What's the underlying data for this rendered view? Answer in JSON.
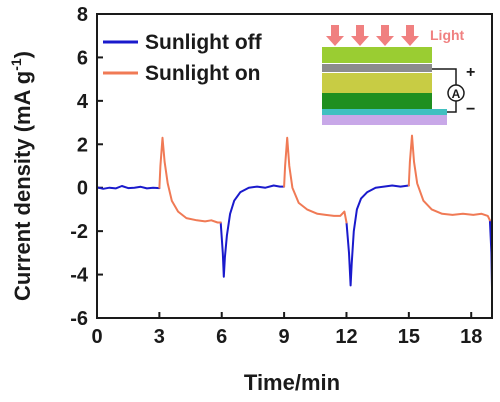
{
  "chart_data": {
    "type": "line",
    "title": "",
    "xlabel": "Time/min",
    "ylabel": "Current density (mA g",
    "ylabel_sup": "-1",
    "ylabel_close": ")",
    "xlim": [
      0,
      19
    ],
    "ylim": [
      -6,
      8
    ],
    "xticks": [
      0,
      3,
      6,
      9,
      12,
      15,
      18
    ],
    "yticks": [
      -6,
      -4,
      -2,
      0,
      2,
      4,
      6,
      8
    ],
    "legend_position": "top-left",
    "series": [
      {
        "name": "Sunlight off",
        "color": "#1a1acc",
        "segments": [
          [
            [
              0,
              0.02
            ],
            [
              0.3,
              -0.05
            ],
            [
              0.6,
              0.0
            ],
            [
              0.9,
              -0.03
            ],
            [
              1.2,
              0.08
            ],
            [
              1.5,
              -0.02
            ],
            [
              1.8,
              0.0
            ],
            [
              2.1,
              0.04
            ],
            [
              2.4,
              -0.03
            ],
            [
              2.7,
              0.0
            ],
            [
              3.0,
              -0.02
            ]
          ],
          [
            [
              5.95,
              -1.6
            ],
            [
              6.05,
              -3.0
            ],
            [
              6.1,
              -4.1
            ],
            [
              6.15,
              -3.2
            ],
            [
              6.25,
              -2.2
            ],
            [
              6.4,
              -1.2
            ],
            [
              6.6,
              -0.6
            ],
            [
              6.9,
              -0.2
            ],
            [
              7.3,
              0.0
            ],
            [
              7.7,
              0.05
            ],
            [
              8.1,
              0.0
            ],
            [
              8.5,
              0.1
            ],
            [
              8.8,
              0.05
            ],
            [
              9.0,
              0.05
            ]
          ],
          [
            [
              12.0,
              -1.6
            ],
            [
              12.12,
              -3.0
            ],
            [
              12.2,
              -4.5
            ],
            [
              12.25,
              -3.5
            ],
            [
              12.35,
              -2.0
            ],
            [
              12.5,
              -1.0
            ],
            [
              12.7,
              -0.5
            ],
            [
              13.0,
              -0.2
            ],
            [
              13.4,
              0.0
            ],
            [
              13.8,
              0.05
            ],
            [
              14.2,
              0.1
            ],
            [
              14.6,
              0.05
            ],
            [
              15.0,
              0.1
            ]
          ],
          [
            [
              18.9,
              -1.5
            ],
            [
              18.97,
              -3.0
            ],
            [
              19.0,
              -4.6
            ]
          ]
        ]
      },
      {
        "name": "Sunlight on",
        "color": "#f07a55",
        "segments": [
          [
            [
              3.0,
              0.0
            ],
            [
              3.05,
              1.0
            ],
            [
              3.15,
              2.3
            ],
            [
              3.25,
              1.2
            ],
            [
              3.4,
              0.2
            ],
            [
              3.6,
              -0.6
            ],
            [
              3.9,
              -1.1
            ],
            [
              4.3,
              -1.4
            ],
            [
              4.8,
              -1.5
            ],
            [
              5.2,
              -1.55
            ],
            [
              5.5,
              -1.5
            ],
            [
              5.8,
              -1.6
            ],
            [
              5.95,
              -1.6
            ]
          ],
          [
            [
              9.0,
              0.05
            ],
            [
              9.05,
              1.0
            ],
            [
              9.15,
              2.3
            ],
            [
              9.25,
              1.0
            ],
            [
              9.4,
              0.0
            ],
            [
              9.7,
              -0.7
            ],
            [
              10.1,
              -1.0
            ],
            [
              10.6,
              -1.2
            ],
            [
              11.0,
              -1.25
            ],
            [
              11.4,
              -1.3
            ],
            [
              11.7,
              -1.3
            ],
            [
              11.9,
              -1.1
            ],
            [
              12.0,
              -1.6
            ]
          ],
          [
            [
              15.0,
              0.1
            ],
            [
              15.05,
              1.2
            ],
            [
              15.15,
              2.4
            ],
            [
              15.25,
              1.2
            ],
            [
              15.4,
              0.2
            ],
            [
              15.7,
              -0.6
            ],
            [
              16.1,
              -1.0
            ],
            [
              16.6,
              -1.2
            ],
            [
              17.1,
              -1.25
            ],
            [
              17.6,
              -1.2
            ],
            [
              18.1,
              -1.25
            ],
            [
              18.5,
              -1.2
            ],
            [
              18.8,
              -1.3
            ],
            [
              18.9,
              -1.5
            ]
          ]
        ]
      }
    ],
    "inset": {
      "label": "Light",
      "ammeter_label": "A",
      "plus_label": "+",
      "minus_label": "−",
      "arrow_color": "#f08080",
      "layer_colors": [
        "#9acd32",
        "#d0d040",
        "#228b22",
        "#9acd32",
        "#40c0c0",
        "#c0a0e0"
      ]
    }
  }
}
